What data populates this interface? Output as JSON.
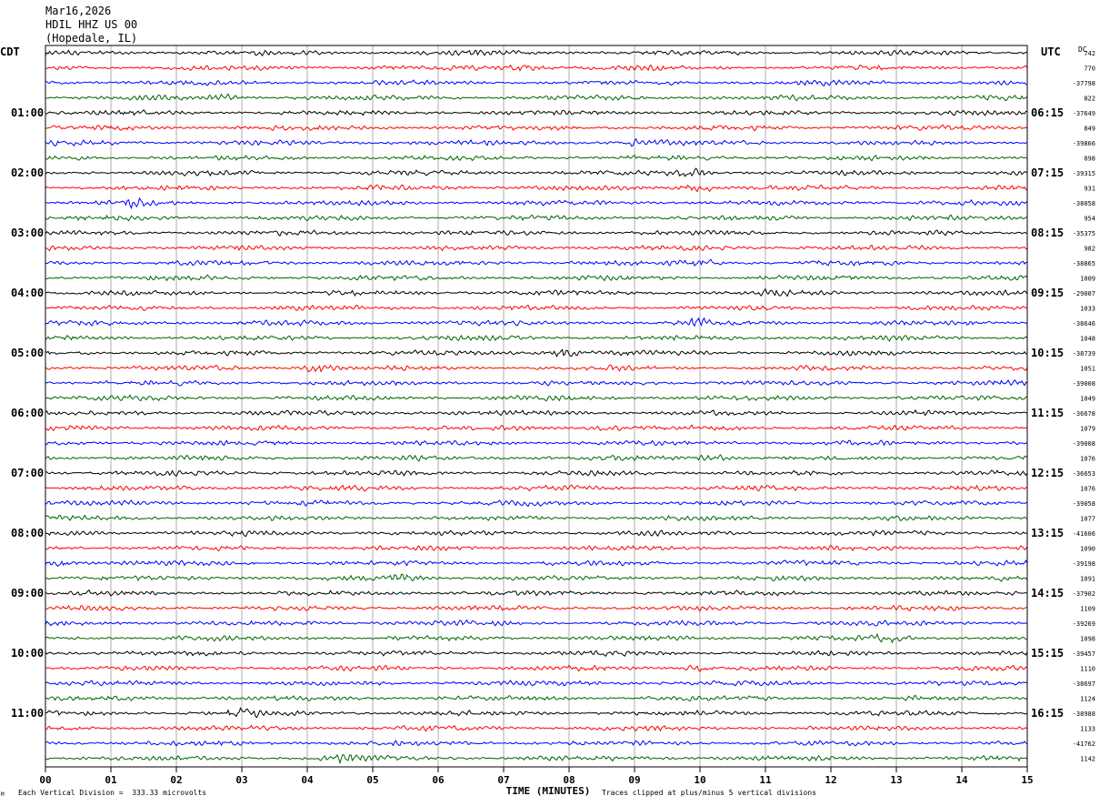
{
  "header": {
    "date": "Mar16,2026",
    "station": "HDIL HHZ US 00",
    "location": "(Hopedale, IL)"
  },
  "left_axis_title": "CDT",
  "right_axis_title": "UTC",
  "dc_title": "DC",
  "footer": {
    "scale_note": "Each Vertical Division =  333.33 microvolts",
    "clip_note": "Traces clipped at plus/minus 5 vertical divisions",
    "corner_mark": "M"
  },
  "colors": {
    "trace_cycle": [
      "#000000",
      "#ff0000",
      "#0000ff",
      "#006400"
    ],
    "grid": "#9a9a9a",
    "frame": "#000000"
  },
  "chart_data": {
    "type": "line",
    "title": "",
    "xlabel": "TIME (MINUTES)",
    "xlim": [
      0,
      15
    ],
    "x_ticks": [
      "00",
      "01",
      "02",
      "03",
      "04",
      "05",
      "06",
      "07",
      "08",
      "09",
      "10",
      "11",
      "12",
      "13",
      "14",
      "15"
    ],
    "traces_per_hour": 4,
    "trace_count": 48,
    "left_hour_labels": [
      "01:00",
      "02:00",
      "03:00",
      "04:00",
      "05:00",
      "06:00",
      "07:00",
      "08:00",
      "09:00",
      "10:00",
      "11:00"
    ],
    "right_hour_labels": [
      "06:15",
      "07:15",
      "08:15",
      "09:15",
      "10:15",
      "11:15",
      "12:15",
      "13:15",
      "14:15",
      "15:15",
      "16:15"
    ],
    "dc_offsets": [
      "742",
      "770",
      "-37798",
      "822",
      "-37649",
      "849",
      "-39866",
      "898",
      "-39315",
      "931",
      "-38058",
      "954",
      "-35375",
      "982",
      "-38865",
      "1009",
      "-29007",
      "1033",
      "-38646",
      "1048",
      "-38739",
      "1051",
      "-39008",
      "1049",
      "-36678",
      "1079",
      "-39008",
      "1076",
      "-36653",
      "1076",
      "-39058",
      "1077",
      "-41606",
      "1090",
      "-39198",
      "1091",
      "-37902",
      "1109",
      "-39269",
      "1098",
      "-39457",
      "1110",
      "-38697",
      "1124",
      "-38988",
      "1133",
      "-41762",
      "1142"
    ]
  }
}
